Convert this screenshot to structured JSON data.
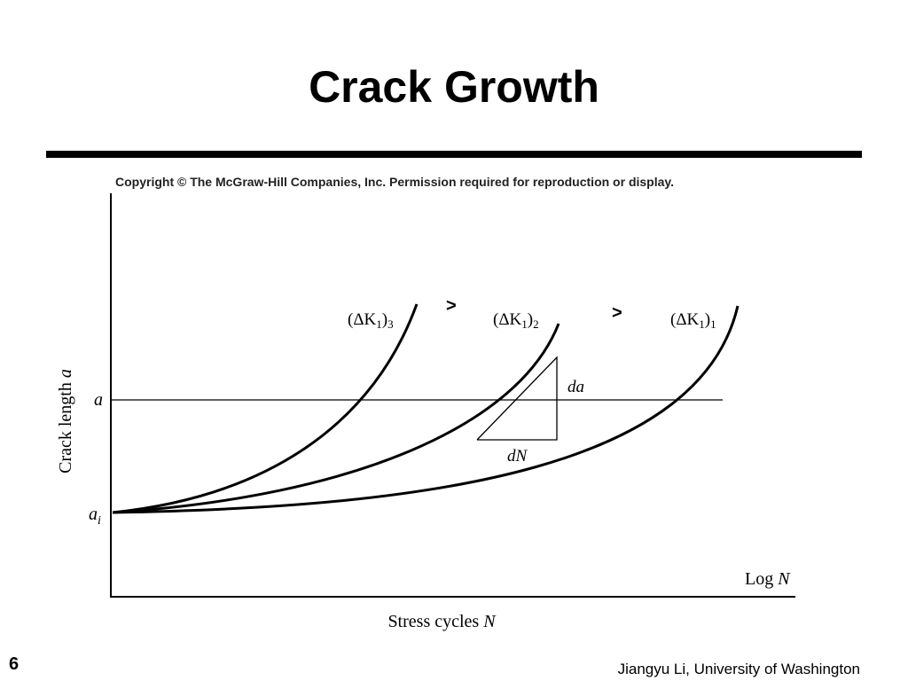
{
  "title": "Crack Growth",
  "copyright": "Copyright © The McGraw-Hill Companies, Inc. Permission required for reproduction or display.",
  "y_axis_label": {
    "text": "Crack length",
    "var": "a"
  },
  "x_axis_label": {
    "text": "Stress cycles",
    "var": "N"
  },
  "x_axis_end_label": {
    "text": "Log",
    "var": "N"
  },
  "level_a": "a",
  "level_ai": {
    "var": "a",
    "sub": "i"
  },
  "curves": [
    {
      "open": "(ΔK",
      "sub1": "1",
      "close": ")",
      "sub2": "3"
    },
    {
      "open": "(ΔK",
      "sub1": "1",
      "close": ")",
      "sub2": "2"
    },
    {
      "open": "(ΔK",
      "sub1": "1",
      "close": ")",
      "sub2": "1"
    }
  ],
  "comparisons": [
    ">",
    ">"
  ],
  "slope_labels": {
    "da": "da",
    "dN": "dN"
  },
  "page_number": "6",
  "footer": "Jiangyu Li, University of Washington"
}
